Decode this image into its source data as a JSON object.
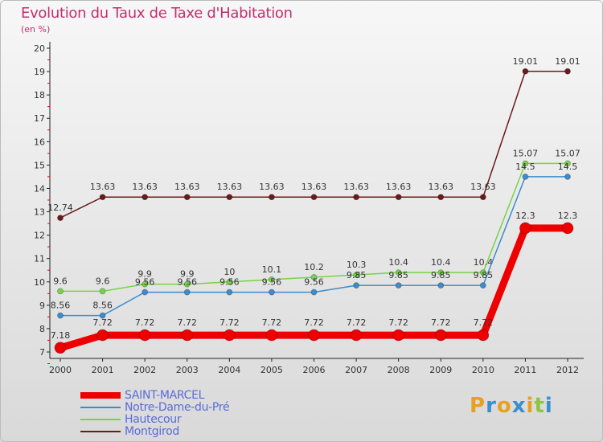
{
  "chart_data": {
    "type": "line",
    "title": "Evolution du Taux de Taxe d'Habitation",
    "subtitle": "(en %)",
    "xlabel": "",
    "ylabel": "",
    "x": [
      "2000",
      "2001",
      "2002",
      "2003",
      "2004",
      "2005",
      "2006",
      "2007",
      "2008",
      "2009",
      "2010",
      "2011",
      "2012"
    ],
    "ylim": [
      7,
      20
    ],
    "yticks": [
      "7",
      "8",
      "9",
      "10",
      "11",
      "12",
      "13",
      "14",
      "15",
      "16",
      "17",
      "18",
      "19",
      "20"
    ],
    "legend_position": "bottom-left",
    "series": [
      {
        "name": "SAINT-MARCEL",
        "color": "#ee0000",
        "values": [
          7.18,
          7.72,
          7.72,
          7.72,
          7.72,
          7.72,
          7.72,
          7.72,
          7.72,
          7.72,
          7.72,
          12.3,
          12.3
        ],
        "labels": [
          "7.18",
          "7.72",
          "7.72",
          "7.72",
          "7.72",
          "7.72",
          "7.72",
          "7.72",
          "7.72",
          "7.72",
          "7.72",
          "12.3",
          "12.3"
        ]
      },
      {
        "name": "Notre-Dame-du-Pré",
        "color": "#3d8ccc",
        "values": [
          8.56,
          8.56,
          9.56,
          9.56,
          9.56,
          9.56,
          9.56,
          9.85,
          9.85,
          9.85,
          9.85,
          14.5,
          14.5
        ],
        "labels": [
          "8.56",
          "8.56",
          "9.56",
          "9.56",
          "9.56",
          "9.56",
          "9.56",
          "9.85",
          "9.85",
          "9.85",
          "9.85",
          "14.5",
          "14.5"
        ]
      },
      {
        "name": "Hautecour",
        "color": "#77d347",
        "values": [
          9.6,
          9.6,
          9.9,
          9.9,
          10,
          10.1,
          10.2,
          10.3,
          10.4,
          10.4,
          10.4,
          15.07,
          15.07
        ],
        "labels": [
          "9.6",
          "9.6",
          "9.9",
          "9.9",
          "10",
          "10.1",
          "10.2",
          "10.3",
          "10.4",
          "10.4",
          "10.4",
          "15.07",
          "15.07"
        ]
      },
      {
        "name": "Montgirod",
        "color": "#6b1a1a",
        "values": [
          12.74,
          13.63,
          13.63,
          13.63,
          13.63,
          13.63,
          13.63,
          13.63,
          13.63,
          13.63,
          13.63,
          19.01,
          19.01
        ],
        "labels": [
          "12.74",
          "13.63",
          "13.63",
          "13.63",
          "13.63",
          "13.63",
          "13.63",
          "13.63",
          "13.63",
          "13.63",
          "13.63",
          "19.01",
          "19.01"
        ]
      }
    ]
  },
  "logo": "Proxiti"
}
